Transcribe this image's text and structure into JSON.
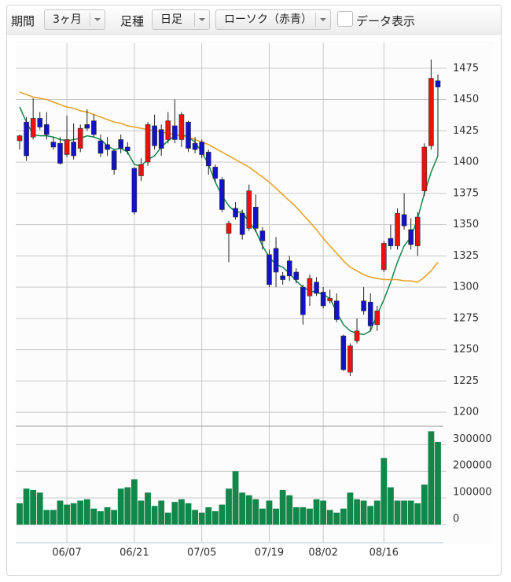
{
  "controls": {
    "period_label": "期間",
    "period": "3ヶ月",
    "kind_label": "足種",
    "kind": "日足",
    "style": "ローソク（赤青）",
    "data_toggle": "データ表示"
  },
  "chart_data": [
    {
      "type": "candlestick",
      "categories": [
        null,
        null,
        null,
        null,
        null,
        null,
        null,
        "06/07",
        null,
        null,
        null,
        null,
        null,
        null,
        null,
        null,
        null,
        "06/21",
        null,
        null,
        null,
        null,
        null,
        null,
        null,
        null,
        null,
        "07/05",
        null,
        null,
        null,
        null,
        null,
        null,
        null,
        null,
        null,
        "07/19",
        null,
        null,
        null,
        null,
        null,
        null,
        null,
        "08/02",
        null,
        null,
        null,
        null,
        null,
        null,
        null,
        null,
        "08/16",
        null,
        null,
        null,
        null,
        null,
        null,
        null,
        null
      ],
      "open": [
        1417,
        1432,
        1420,
        1435,
        1430,
        1416,
        1415,
        1406,
        1416,
        1411,
        1430,
        1433,
        1417,
        1414,
        1409,
        1418,
        1412,
        1395,
        1389,
        1400,
        1429,
        1426,
        1418,
        1429,
        1418,
        1432,
        1415,
        1416,
        1408,
        1396,
        1386,
        1343,
        1363,
        1359,
        1347,
        1364,
        1345,
        1326,
        1331,
        1309,
        1321,
        1312,
        1300,
        1293,
        1304,
        1296,
        1289,
        1289,
        1261,
        1232,
        1257,
        1289,
        1288,
        1270,
        1314,
        1339,
        1333,
        1358,
        1346,
        1333,
        1377,
        1413,
        1465
      ],
      "high": [
        1422,
        1436,
        1451,
        1440,
        1440,
        1420,
        1420,
        1437,
        1431,
        1430,
        1442,
        1438,
        1422,
        1420,
        1410,
        1422,
        1416,
        1396,
        1403,
        1432,
        1438,
        1430,
        1440,
        1450,
        1440,
        1433,
        1420,
        1418,
        1410,
        1398,
        1388,
        1353,
        1368,
        1362,
        1382,
        1374,
        1348,
        1330,
        1340,
        1312,
        1325,
        1315,
        1302,
        1310,
        1308,
        1300,
        1298,
        1295,
        1262,
        1255,
        1275,
        1300,
        1295,
        1285,
        1337,
        1350,
        1363,
        1375,
        1355,
        1360,
        1415,
        1482,
        1470
      ],
      "low": [
        1410,
        1401,
        1418,
        1426,
        1418,
        1410,
        1398,
        1404,
        1402,
        1408,
        1425,
        1420,
        1404,
        1405,
        1390,
        1407,
        1406,
        1358,
        1385,
        1397,
        1410,
        1405,
        1415,
        1415,
        1412,
        1408,
        1407,
        1403,
        1390,
        1384,
        1360,
        1320,
        1354,
        1338,
        1345,
        1344,
        1330,
        1300,
        1300,
        1302,
        1305,
        1303,
        1270,
        1285,
        1293,
        1283,
        1287,
        1272,
        1233,
        1229,
        1255,
        1278,
        1265,
        1265,
        1312,
        1330,
        1330,
        1346,
        1330,
        1325,
        1373,
        1410,
        1405
      ],
      "close": [
        1421,
        1405,
        1435,
        1428,
        1422,
        1412,
        1399,
        1418,
        1405,
        1427,
        1427,
        1422,
        1407,
        1410,
        1394,
        1411,
        1409,
        1360,
        1398,
        1430,
        1413,
        1411,
        1433,
        1418,
        1438,
        1411,
        1410,
        1406,
        1397,
        1387,
        1362,
        1351,
        1356,
        1342,
        1377,
        1347,
        1337,
        1302,
        1312,
        1306,
        1309,
        1306,
        1278,
        1307,
        1295,
        1285,
        1291,
        1274,
        1234,
        1253,
        1265,
        1281,
        1269,
        1281,
        1335,
        1333,
        1359,
        1349,
        1334,
        1356,
        1412,
        1467,
        1460
      ],
      "up_color": "#e8140c",
      "down_color": "#1212c8",
      "series": [
        {
          "color": "#14864a",
          "values": [
            1444,
            1432,
            1422,
            1421,
            1421,
            1420,
            1418,
            1417,
            1418,
            1419,
            1421,
            1420,
            1418,
            1413,
            1410,
            1411,
            1408,
            1398,
            1397,
            1402,
            1405,
            1412,
            1417,
            1421,
            1422,
            1420,
            1416,
            1408,
            1398,
            1384,
            1373,
            1365,
            1360,
            1360,
            1352,
            1345,
            1333,
            1324,
            1318,
            1316,
            1311,
            1305,
            1300,
            1297,
            1296,
            1294,
            1291,
            1280,
            1270,
            1265,
            1263,
            1262,
            1265,
            1278,
            1290,
            1304,
            1320,
            1333,
            1340,
            1355,
            1375,
            1392,
            1405
          ]
        },
        {
          "color": "#e8a020",
          "values": [
            1456,
            1454,
            1452,
            1451,
            1450,
            1448,
            1446,
            1444,
            1443,
            1441,
            1440,
            1438,
            1436,
            1434,
            1432,
            1431,
            1429,
            1428,
            1427,
            1426,
            1425,
            1424,
            1423,
            1422,
            1421,
            1420,
            1418,
            1416,
            1414,
            1411,
            1408,
            1405,
            1402,
            1399,
            1396,
            1392,
            1388,
            1384,
            1379,
            1374,
            1369,
            1364,
            1358,
            1352,
            1346,
            1339,
            1333,
            1327,
            1321,
            1316,
            1313,
            1310,
            1308,
            1307,
            1306,
            1306,
            1306,
            1305,
            1305,
            1304,
            1308,
            1313,
            1320
          ]
        }
      ],
      "ylim": [
        1190,
        1495
      ],
      "yticks": [
        1200,
        1225,
        1250,
        1275,
        1300,
        1325,
        1350,
        1375,
        1400,
        1425,
        1450,
        1475
      ],
      "grid": true
    },
    {
      "type": "bar",
      "values": [
        80000,
        135000,
        130000,
        120000,
        55000,
        55000,
        90000,
        75000,
        80000,
        90000,
        95000,
        60000,
        50000,
        65000,
        55000,
        135000,
        140000,
        170000,
        90000,
        120000,
        70000,
        90000,
        45000,
        85000,
        95000,
        80000,
        55000,
        45000,
        65000,
        50000,
        75000,
        135000,
        200000,
        120000,
        110000,
        95000,
        60000,
        90000,
        60000,
        130000,
        110000,
        65000,
        65000,
        60000,
        95000,
        90000,
        55000,
        45000,
        60000,
        120000,
        95000,
        90000,
        70000,
        90000,
        250000,
        140000,
        90000,
        90000,
        90000,
        80000,
        150000,
        350000,
        310000
      ],
      "color": "#13874a",
      "ylim": [
        0,
        360000
      ],
      "yticks": [
        0,
        100000,
        200000,
        300000
      ],
      "grid": true
    }
  ]
}
